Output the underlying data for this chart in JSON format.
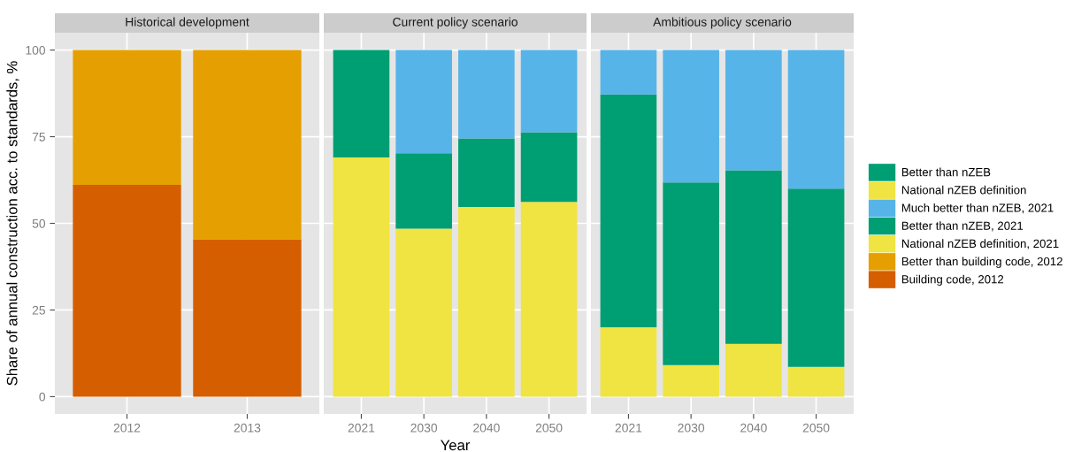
{
  "chart_data": [
    {
      "type": "bar",
      "title": "Historical development",
      "ylabel": "Share of annual construction acc. to standards, %",
      "categories": [
        "2012",
        "2013"
      ],
      "stacked": true,
      "ylim": [
        -5,
        105
      ],
      "yticks": [
        0,
        25,
        50,
        75,
        100
      ],
      "grid": true,
      "legend": "right",
      "series": [
        {
          "name": "Building code, 2012",
          "color": "#d55e00",
          "values": [
            61.1,
            45.4
          ]
        },
        {
          "name": "Better than building code, 2012",
          "color": "#e69f00",
          "values": [
            38.9,
            54.6
          ]
        }
      ]
    },
    {
      "type": "bar",
      "title": "Current policy scenario",
      "xlabel": "Year",
      "categories": [
        "2021",
        "2030",
        "2040",
        "2050"
      ],
      "stacked": true,
      "ylim": [
        -5,
        105
      ],
      "yticks": [
        0,
        25,
        50,
        75,
        100
      ],
      "grid": true,
      "tick_labels": "x",
      "legend": "right",
      "series": [
        {
          "name": "National nZEB definition, 2021",
          "color": "#f0e442",
          "values": [
            null,
            48.5,
            54.7,
            56.2
          ]
        },
        {
          "name": "Better than nZEB, 2021",
          "color": "#009e73",
          "values": [
            null,
            21.7,
            19.8,
            20.1
          ]
        },
        {
          "name": "Much better than nZEB, 2021",
          "color": "#56b4e9",
          "values": [
            null,
            29.8,
            25.5,
            23.7
          ]
        },
        {
          "name": "National nZEB definition",
          "color": "#f0e442",
          "values": [
            69.0,
            null,
            null,
            null
          ]
        },
        {
          "name": "Better than nZEB",
          "color": "#009e73",
          "values": [
            31.0,
            null,
            null,
            null
          ]
        }
      ]
    },
    {
      "type": "bar",
      "title": "Ambitious policy scenario",
      "categories": [
        "2021",
        "2030",
        "2040",
        "2050"
      ],
      "stacked": true,
      "ylim": [
        -5,
        105
      ],
      "yticks": [
        0,
        25,
        50,
        75,
        100
      ],
      "grid": true,
      "tick_labels": "x",
      "legend": "right",
      "series": [
        {
          "name": "National nZEB definition, 2021",
          "color": "#f0e442",
          "values": [
            20.0,
            9.1,
            15.2,
            8.6
          ]
        },
        {
          "name": "Better than nZEB, 2021",
          "color": "#009e73",
          "values": [
            67.2,
            52.7,
            50.1,
            51.4
          ]
        },
        {
          "name": "Much better than nZEB, 2021",
          "color": "#56b4e9",
          "values": [
            12.8,
            38.2,
            34.7,
            40.0
          ]
        }
      ]
    }
  ]
}
